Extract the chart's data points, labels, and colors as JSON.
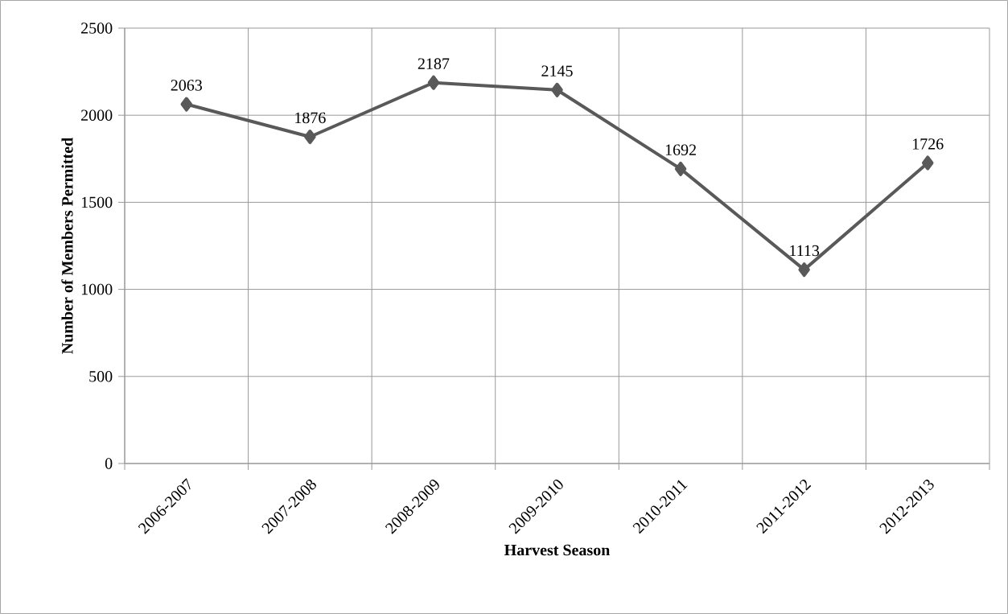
{
  "chart_data": {
    "type": "line",
    "xlabel": "Harvest Season",
    "ylabel": "Number of Members Permitted",
    "categories": [
      "2006-2007",
      "2007-2008",
      "2008-2009",
      "2009-2010",
      "2010-2011",
      "2011-2012",
      "2012-2013"
    ],
    "series": [
      {
        "color": "#595959",
        "values": [
          2063,
          1876,
          2187,
          2145,
          1692,
          1113,
          1726
        ]
      }
    ],
    "ylim": [
      0,
      2500
    ],
    "yticks": [
      0,
      500,
      1000,
      1500,
      2000,
      2500
    ],
    "grid": true,
    "marker": "diamond",
    "data_labels": true
  }
}
